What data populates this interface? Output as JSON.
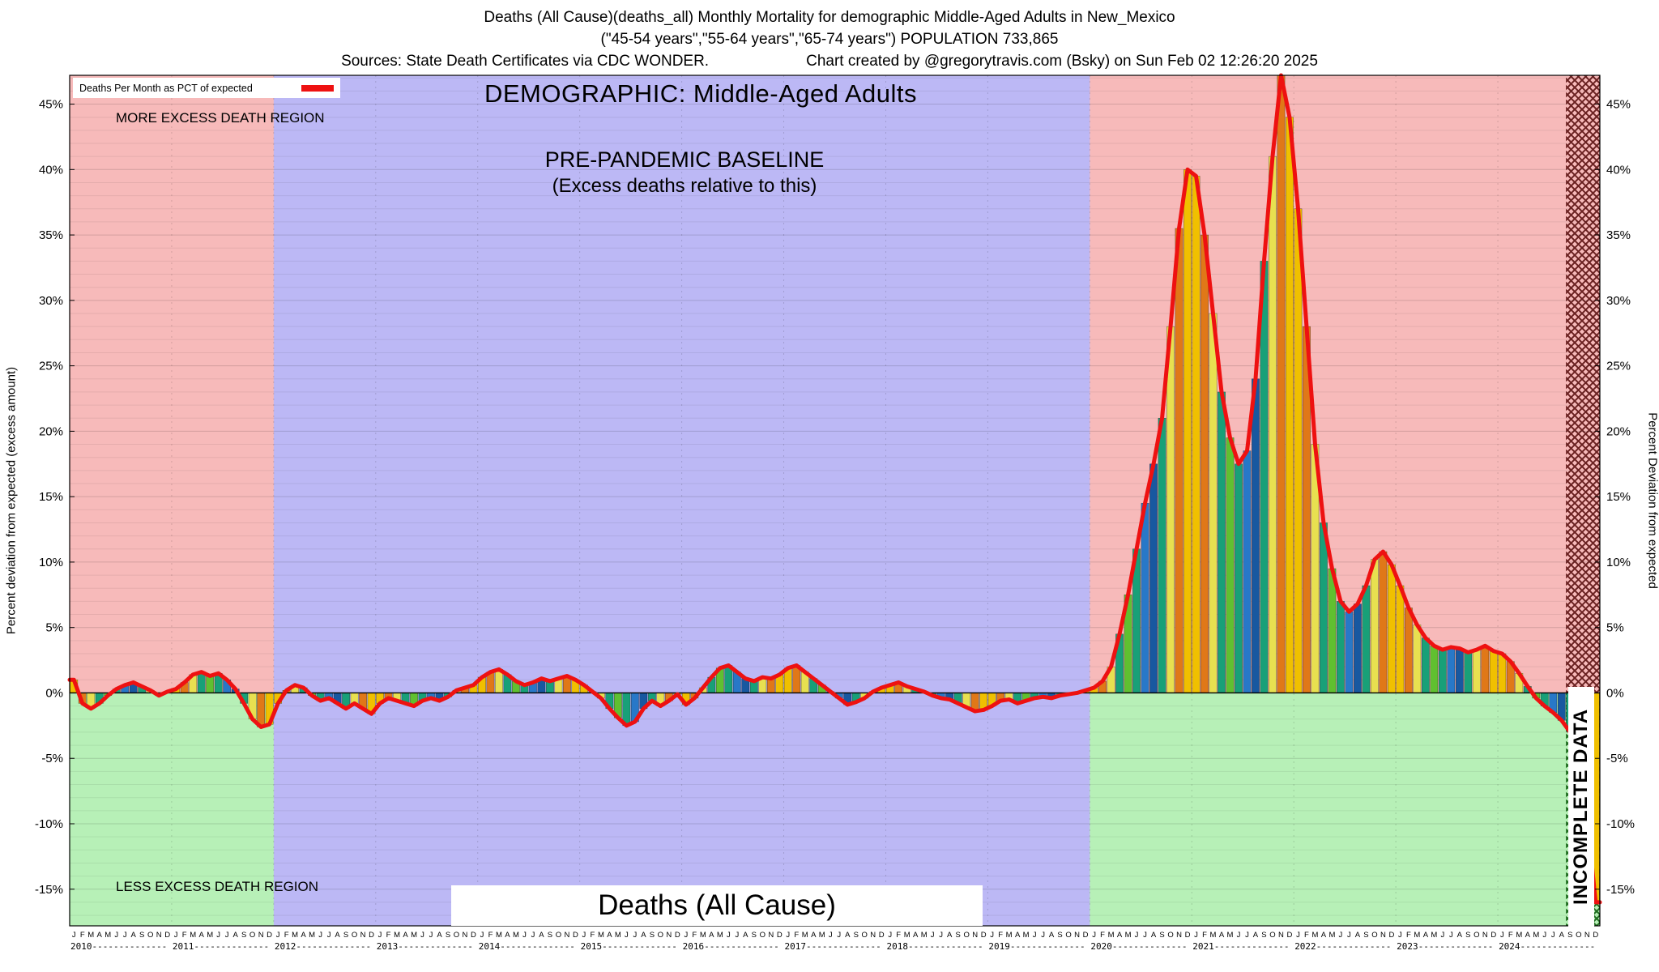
{
  "header": {
    "line1": "Deaths (All Cause)(deaths_all) Monthly Mortality for demographic Middle-Aged Adults in New_Mexico",
    "line2": "(\"45-54 years\",\"55-64 years\",\"65-74 years\") POPULATION 733,865",
    "line3_sources": "Sources: State Death Certificates via CDC WONDER.",
    "line3_created": "Chart created by @gregorytravis.com (Bsky) on Sun Feb 02 12:26:20 2025"
  },
  "legend": {
    "label": "Deaths Per Month as PCT of expected"
  },
  "annotations": {
    "more_excess": "MORE EXCESS DEATH REGION",
    "less_excess": "LESS EXCESS DEATH REGION",
    "demographic": "DEMOGRAPHIC: Middle-Aged Adults",
    "baseline_title": "PRE-PANDEMIC BASELINE",
    "baseline_sub": "(Excess deaths relative to this)",
    "deaths_box": "Deaths (All Cause)",
    "incomplete": "INCOMPLETE DATA"
  },
  "axes": {
    "left_title": "Percent deviation from expected (excess amount)",
    "right_title": "Percent Deviation from expected"
  },
  "chart_data": {
    "type": "bar",
    "title": "Deaths (All Cause) Monthly Mortality, Middle-Aged Adults, New Mexico",
    "ylabel": "Percent deviation from expected (excess amount)",
    "ylim": [
      -17.8,
      47.2
    ],
    "yticks": [
      -15,
      -10,
      -5,
      0,
      5,
      10,
      15,
      20,
      25,
      30,
      35,
      40,
      45
    ],
    "years": [
      2010,
      2011,
      2012,
      2013,
      2014,
      2015,
      2016,
      2017,
      2018,
      2019,
      2020,
      2021,
      2022,
      2023,
      2024
    ],
    "month_letters": "JFMAMJJASOND",
    "series_name": "Deaths Per Month as PCT of expected",
    "values_pct": [
      1.0,
      -0.8,
      -1.2,
      -0.8,
      -0.2,
      0.3,
      0.6,
      0.8,
      0.5,
      0.2,
      -0.2,
      0.1,
      0.3,
      0.8,
      1.4,
      1.6,
      1.3,
      1.5,
      1.0,
      0.3,
      -0.8,
      -2.0,
      -2.6,
      -2.4,
      -0.8,
      0.2,
      0.6,
      0.4,
      -0.2,
      -0.6,
      -0.4,
      -0.8,
      -1.2,
      -0.8,
      -1.2,
      -1.6,
      -0.8,
      -0.4,
      -0.6,
      -0.8,
      -1.0,
      -0.6,
      -0.4,
      -0.6,
      -0.3,
      0.2,
      0.4,
      0.6,
      1.2,
      1.6,
      1.8,
      1.4,
      0.9,
      0.6,
      0.8,
      1.1,
      0.9,
      1.1,
      1.3,
      1.0,
      0.6,
      0.1,
      -0.4,
      -1.2,
      -1.9,
      -2.5,
      -2.2,
      -1.2,
      -0.6,
      -1.0,
      -0.6,
      -0.1,
      -0.9,
      -0.4,
      0.4,
      1.2,
      1.9,
      2.1,
      1.6,
      1.1,
      0.9,
      1.2,
      1.1,
      1.4,
      1.9,
      2.1,
      1.6,
      1.1,
      0.6,
      0.1,
      -0.4,
      -0.9,
      -0.7,
      -0.4,
      0.1,
      0.4,
      0.6,
      0.8,
      0.5,
      0.3,
      0.1,
      -0.2,
      -0.4,
      -0.5,
      -0.8,
      -1.1,
      -1.4,
      -1.3,
      -1.0,
      -0.6,
      -0.5,
      -0.8,
      -0.6,
      -0.4,
      -0.3,
      -0.4,
      -0.2,
      -0.1,
      0.0,
      0.2,
      0.4,
      0.9,
      2.0,
      4.5,
      7.5,
      11.0,
      14.5,
      17.5,
      21.0,
      28.0,
      35.5,
      40.0,
      39.5,
      35.0,
      29.0,
      23.0,
      19.5,
      17.5,
      18.5,
      24.0,
      33.0,
      41.0,
      47.2,
      44.0,
      37.0,
      28.0,
      19.0,
      13.0,
      9.5,
      7.0,
      6.2,
      6.8,
      8.2,
      10.2,
      10.8,
      9.8,
      8.2,
      6.5,
      5.2,
      4.2,
      3.6,
      3.3,
      3.5,
      3.4,
      3.1,
      3.3,
      3.6,
      3.2,
      3.0,
      2.4,
      1.5,
      0.5,
      -0.4,
      -1.0,
      -1.5,
      -2.1,
      -3.0,
      -5.0,
      -9.5,
      -16.0
    ],
    "baseline_region": {
      "start_index": 24,
      "end_index": 120
    },
    "incomplete_start_index": 176,
    "legend_position": "top-left",
    "grid": true,
    "colors": {
      "line": "#ee1111",
      "above_bg": "#f7baba",
      "below_bg": "#b7f0b7",
      "baseline_bg": "#bcb8f5",
      "hatch_above": "#6b2222",
      "hatch_below": "#1e6b1e",
      "month_colors": [
        "#f0c000",
        "#e07818",
        "#e8e050",
        "#18a078",
        "#60c030",
        "#18a078",
        "#2878c8",
        "#1858a0",
        "#18a078",
        "#e8e050",
        "#e07818",
        "#f0c000"
      ]
    }
  }
}
